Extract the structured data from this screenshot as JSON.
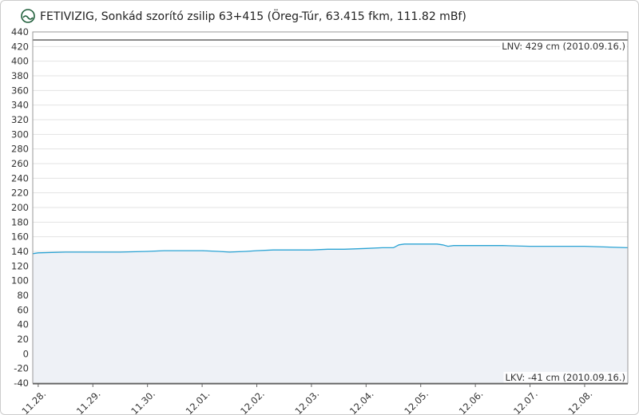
{
  "chart_data": {
    "type": "line",
    "title": "FETIVIZIG, Sonkád szorító zsilip 63+415 (Öreg-Túr, 63.415 fkm, 111.82 mBf)",
    "x": [
      -0.1,
      0,
      0.5,
      1,
      1.5,
      2,
      2.3,
      2.6,
      3,
      3.3,
      3.5,
      3.8,
      4,
      4.3,
      4.6,
      5,
      5.3,
      5.6,
      6,
      6.3,
      6.5,
      6.6,
      6.7,
      7,
      7.3,
      7.4,
      7.5,
      7.6,
      7.7,
      7.9,
      8,
      8.5,
      9,
      9.5,
      10,
      10.4,
      10.79
    ],
    "series": [
      {
        "color": "#2aa3d4",
        "area_color": "#eef1f6",
        "values": [
          137,
          138,
          139,
          139,
          139,
          140,
          141,
          141,
          141,
          140,
          139,
          140,
          141,
          142,
          142,
          142,
          143,
          143,
          144,
          145,
          145,
          149,
          150,
          150,
          150,
          149,
          147,
          148,
          148,
          148,
          148,
          148,
          147,
          147,
          147,
          146,
          145
        ]
      }
    ],
    "xlim": [
      -0.1,
      10.79
    ],
    "xticks": [
      {
        "value": 0,
        "label": "11.28."
      },
      {
        "value": 1,
        "label": "11.29."
      },
      {
        "value": 2,
        "label": "11.30."
      },
      {
        "value": 3,
        "label": "12.01."
      },
      {
        "value": 4,
        "label": "12.02."
      },
      {
        "value": 5,
        "label": "12.03."
      },
      {
        "value": 6,
        "label": "12.04."
      },
      {
        "value": 7,
        "label": "12.05."
      },
      {
        "value": 8,
        "label": "12.06."
      },
      {
        "value": 9,
        "label": "12.07."
      },
      {
        "value": 10,
        "label": "12.08."
      }
    ],
    "ylim": [
      -40,
      440
    ],
    "yticks": [
      -40,
      -20,
      0,
      20,
      40,
      60,
      80,
      100,
      120,
      140,
      160,
      180,
      200,
      220,
      240,
      260,
      280,
      300,
      320,
      340,
      360,
      380,
      400,
      420,
      440
    ],
    "grid": true,
    "reference_lines": [
      {
        "value": 429,
        "label": "LNV: 429 cm (2010.09.16.)",
        "position": "top"
      },
      {
        "value": -41,
        "label": "LKV: -41 cm (2010.09.16.)",
        "position": "bottom"
      }
    ]
  }
}
